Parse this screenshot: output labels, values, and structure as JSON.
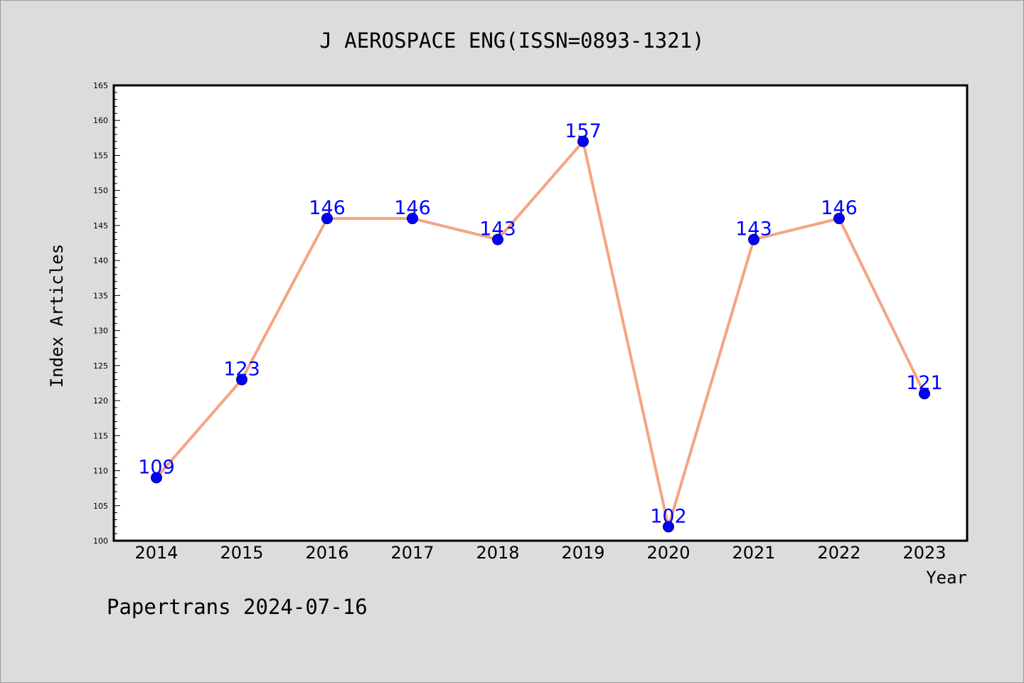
{
  "chart_data": {
    "type": "line",
    "title": "J AEROSPACE ENG(ISSN=0893-1321)",
    "xlabel": "Year",
    "ylabel": "Index Articles",
    "categories": [
      "2014",
      "2015",
      "2016",
      "2017",
      "2018",
      "2019",
      "2020",
      "2021",
      "2022",
      "2023"
    ],
    "series": [
      {
        "values": [
          109,
          123,
          146,
          146,
          143,
          157,
          102,
          143,
          146,
          121
        ]
      }
    ],
    "data_labels": [
      "109",
      "123",
      "146",
      "146",
      "143",
      "157",
      "102",
      "143",
      "146",
      "121"
    ],
    "ylim": [
      100,
      165
    ],
    "yticks": [
      "100",
      "105",
      "110",
      "115",
      "120",
      "125",
      "130",
      "135",
      "140",
      "145",
      "150",
      "155",
      "160",
      "165"
    ],
    "grid": false,
    "line_color": "#f4a582",
    "marker_color": "#0000ff",
    "label_color": "#0000ff",
    "background": "#dcdcdc"
  },
  "footer": {
    "credit": "Papertrans 2024-07-16"
  }
}
